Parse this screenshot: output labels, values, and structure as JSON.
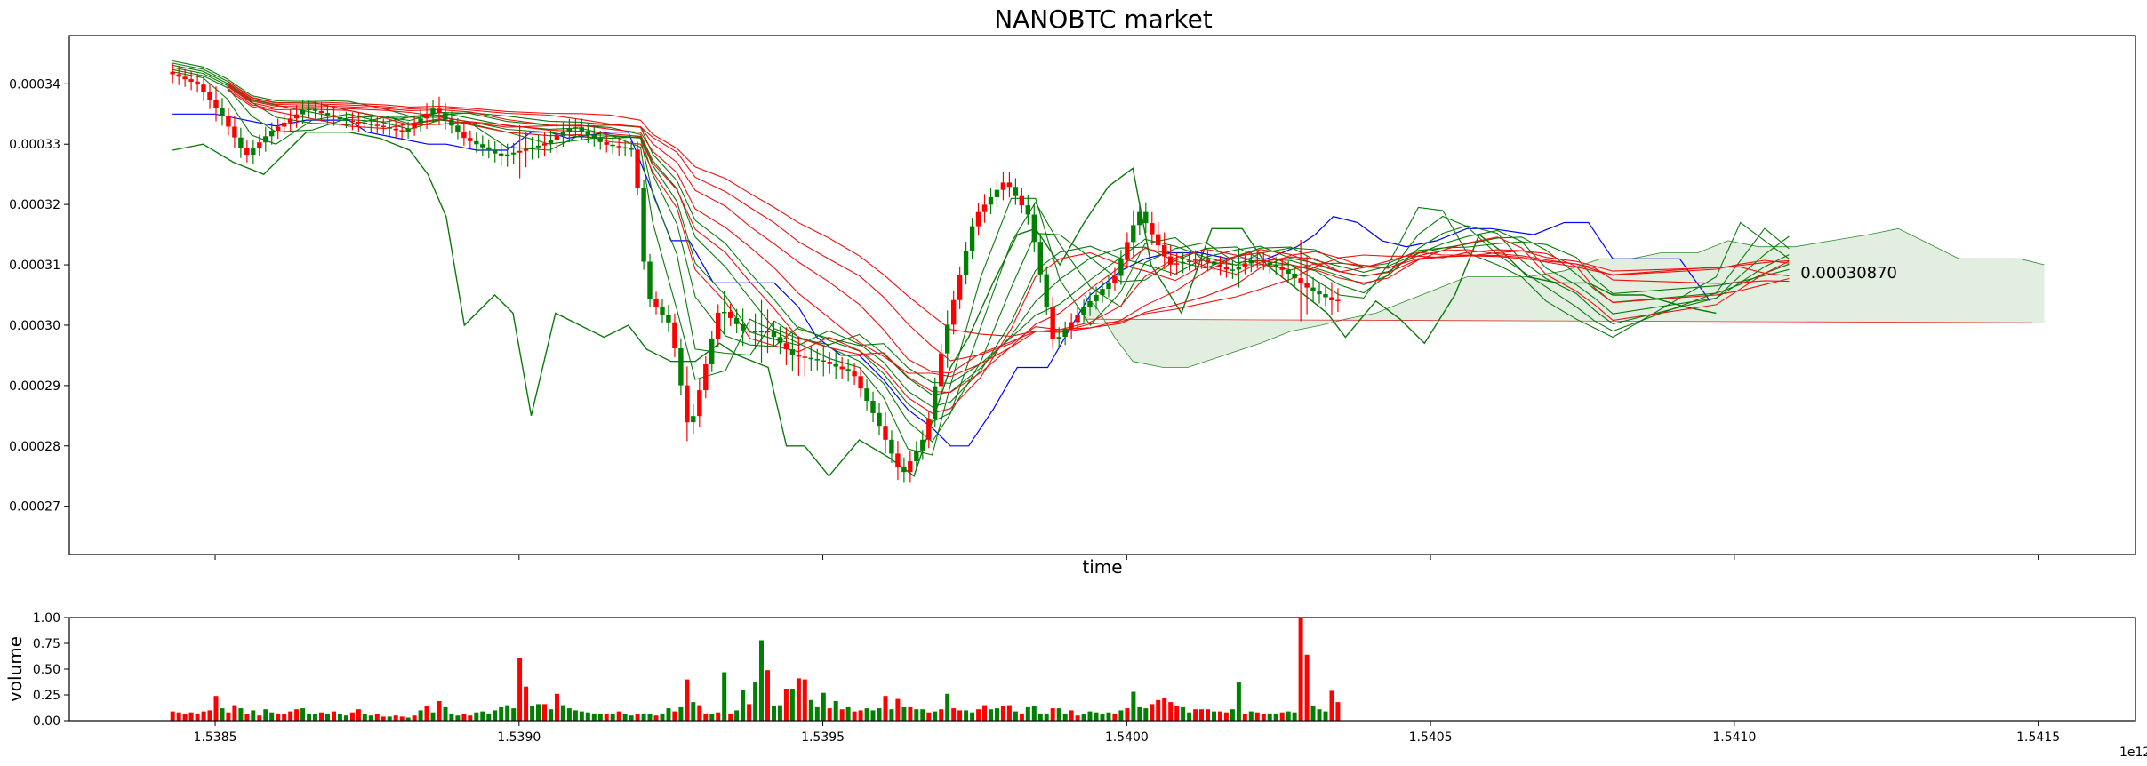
{
  "chart_data": [
    {
      "type": "candlestick",
      "title": "NANOBTC market",
      "xlabel": "time",
      "ylabel": "",
      "xlim": [
        1.53826,
        1.54166
      ],
      "ylim": [
        0.000262,
        0.000348
      ],
      "y_ticks": [
        0.00027,
        0.00028,
        0.00029,
        0.0003,
        0.00031,
        0.00032,
        0.00033,
        0.00034
      ],
      "y_tick_labels": [
        "0.00027",
        "0.00028",
        "0.00029",
        "0.00030",
        "0.00031",
        "0.00032",
        "0.00033",
        "0.00034"
      ],
      "x_ticks": [
        1.5385,
        1.539,
        1.5395,
        1.54,
        1.5405,
        1.541,
        1.5415
      ],
      "last_price_label": "0.00030870",
      "last_price": [
        1.5411,
        0.0003087
      ],
      "up_color": "#008000",
      "down_color": "#ff0000",
      "price_path": [
        [
          1.53843,
          0.000342
        ],
        [
          1.53848,
          0.00034
        ],
        [
          1.53852,
          0.000335
        ],
        [
          1.53856,
          0.000328
        ],
        [
          1.5386,
          0.000332
        ],
        [
          1.53866,
          0.000336
        ],
        [
          1.53872,
          0.000334
        ],
        [
          1.53878,
          0.000333
        ],
        [
          1.53882,
          0.000332
        ],
        [
          1.53887,
          0.000336
        ],
        [
          1.53892,
          0.000331
        ],
        [
          1.53898,
          0.000328
        ],
        [
          1.53905,
          0.00033
        ],
        [
          1.5391,
          0.000333
        ],
        [
          1.53915,
          0.00033
        ],
        [
          1.5392,
          0.000329
        ],
        [
          1.53922,
          0.000305
        ],
        [
          1.53926,
          0.0003
        ],
        [
          1.53929,
          0.000282
        ],
        [
          1.53934,
          0.000303
        ],
        [
          1.53938,
          0.000299
        ],
        [
          1.53942,
          0.000299
        ],
        [
          1.53946,
          0.000295
        ],
        [
          1.53951,
          0.000294
        ],
        [
          1.53956,
          0.000292
        ],
        [
          1.5396,
          0.000284
        ],
        [
          1.53964,
          0.000275
        ],
        [
          1.53968,
          0.000282
        ],
        [
          1.53971,
          0.000298
        ],
        [
          1.53976,
          0.000318
        ],
        [
          1.53981,
          0.000324
        ],
        [
          1.53985,
          0.000318
        ],
        [
          1.53989,
          0.000297
        ],
        [
          1.53994,
          0.000303
        ],
        [
          1.53999,
          0.000308
        ],
        [
          1.54003,
          0.000319
        ],
        [
          1.54008,
          0.00031
        ],
        [
          1.54013,
          0.000311
        ],
        [
          1.54018,
          0.000309
        ],
        [
          1.54022,
          0.000311
        ],
        [
          1.54027,
          0.000309
        ],
        [
          1.54031,
          0.000306
        ],
        [
          1.54035,
          0.000304
        ],
        [
          1.54039,
          0.000305
        ],
        [
          1.54043,
          0.000315
        ],
        [
          1.54048,
          0.000324
        ],
        [
          1.54052,
          0.000314
        ],
        [
          1.54056,
          0.00031
        ],
        [
          1.54061,
          0.00031
        ],
        [
          1.54065,
          0.000306
        ],
        [
          1.54069,
          0.000302
        ],
        [
          1.54074,
          0.0003
        ],
        [
          1.54077,
          0.000299
        ],
        [
          1.5408,
          0.000297
        ],
        [
          1.54097,
          0.000319
        ],
        [
          1.54101,
          0.000315
        ],
        [
          1.54105,
          0.000313
        ],
        [
          1.54109,
          0.000309
        ]
      ],
      "cloud_upper_path": [
        [
          1.53993,
          0.000305
        ],
        [
          1.53995,
          0.000303
        ],
        [
          1.53998,
          0.000298
        ],
        [
          1.54001,
          0.000294
        ],
        [
          1.54006,
          0.000293
        ],
        [
          1.5401,
          0.000293
        ],
        [
          1.54016,
          0.000295
        ],
        [
          1.54022,
          0.000297
        ],
        [
          1.54027,
          0.000299
        ],
        [
          1.54032,
          0.0003
        ],
        [
          1.54036,
          0.000301
        ],
        [
          1.54041,
          0.000302
        ],
        [
          1.54046,
          0.000304
        ],
        [
          1.54051,
          0.000306
        ],
        [
          1.54056,
          0.000308
        ],
        [
          1.54061,
          0.000308
        ],
        [
          1.54066,
          0.000308
        ],
        [
          1.54072,
          0.000309
        ],
        [
          1.54078,
          0.000311
        ],
        [
          1.54083,
          0.000311
        ],
        [
          1.54088,
          0.000312
        ],
        [
          1.54094,
          0.000312
        ],
        [
          1.54099,
          0.000314
        ],
        [
          1.54104,
          0.000313
        ],
        [
          1.5411,
          0.000313
        ],
        [
          1.54116,
          0.000314
        ],
        [
          1.54122,
          0.000315
        ],
        [
          1.54127,
          0.000316
        ],
        [
          1.54131,
          0.000314
        ],
        [
          1.54137,
          0.000311
        ],
        [
          1.54141,
          0.000311
        ],
        [
          1.54147,
          0.000311
        ],
        [
          1.54151,
          0.00031
        ]
      ],
      "cloud_lower_path": [
        [
          1.53993,
          0.000301
        ],
        [
          1.54151,
          0.0003004
        ]
      ],
      "baseline_path": [
        [
          1.53843,
          0.000329
        ],
        [
          1.53848,
          0.00033
        ],
        [
          1.53853,
          0.000327
        ],
        [
          1.53858,
          0.000325
        ],
        [
          1.53865,
          0.000332
        ],
        [
          1.53872,
          0.000332
        ],
        [
          1.53877,
          0.000331
        ],
        [
          1.53882,
          0.000329
        ],
        [
          1.53885,
          0.000325
        ],
        [
          1.53888,
          0.000318
        ],
        [
          1.53891,
          0.0003
        ],
        [
          1.53896,
          0.000305
        ],
        [
          1.53899,
          0.000302
        ],
        [
          1.53902,
          0.000285
        ],
        [
          1.53906,
          0.000302
        ],
        [
          1.5391,
          0.0003
        ],
        [
          1.53914,
          0.000298
        ],
        [
          1.53918,
          0.0003
        ],
        [
          1.53921,
          0.000296
        ],
        [
          1.53925,
          0.000294
        ],
        [
          1.53929,
          0.000294
        ],
        [
          1.53933,
          0.000297
        ],
        [
          1.53936,
          0.000295
        ],
        [
          1.53941,
          0.000293
        ],
        [
          1.53944,
          0.00028
        ],
        [
          1.53947,
          0.00028
        ],
        [
          1.53951,
          0.000275
        ],
        [
          1.53956,
          0.000281
        ],
        [
          1.53961,
          0.000278
        ],
        [
          1.53965,
          0.000275
        ],
        [
          1.53971,
          0.000293
        ],
        [
          1.53974,
          0.000298
        ],
        [
          1.53978,
          0.000307
        ],
        [
          1.53982,
          0.000315
        ],
        [
          1.53985,
          0.000316
        ],
        [
          1.53989,
          0.00031
        ],
        [
          1.53993,
          0.000317
        ],
        [
          1.53997,
          0.000323
        ],
        [
          1.54001,
          0.000326
        ],
        [
          1.54004,
          0.00031
        ],
        [
          1.54009,
          0.000302
        ],
        [
          1.54014,
          0.000316
        ],
        [
          1.54019,
          0.000316
        ],
        [
          1.54023,
          0.00031
        ],
        [
          1.54028,
          0.000306
        ],
        [
          1.54033,
          0.000302
        ],
        [
          1.54036,
          0.000298
        ],
        [
          1.54041,
          0.000304
        ],
        [
          1.54045,
          0.000301
        ],
        [
          1.54049,
          0.000297
        ],
        [
          1.54054,
          0.000305
        ],
        [
          1.54058,
          0.000315
        ],
        [
          1.54062,
          0.000312
        ],
        [
          1.54066,
          0.000308
        ],
        [
          1.54071,
          0.000307
        ],
        [
          1.54076,
          0.000307
        ],
        [
          1.5408,
          0.000305
        ],
        [
          1.54085,
          0.000305
        ],
        [
          1.54092,
          0.000303
        ],
        [
          1.54097,
          0.000302
        ]
      ],
      "reference_line_color": "#0000ff",
      "reference_path": [
        [
          1.53843,
          0.000335
        ],
        [
          1.5385,
          0.000335
        ],
        [
          1.5386,
          0.000333
        ],
        [
          1.53865,
          0.000334
        ],
        [
          1.53872,
          0.000334
        ],
        [
          1.53875,
          0.000332
        ],
        [
          1.5388,
          0.000331
        ],
        [
          1.53885,
          0.00033
        ],
        [
          1.53888,
          0.00033
        ],
        [
          1.53893,
          0.000329
        ],
        [
          1.53898,
          0.000329
        ],
        [
          1.53902,
          0.000332
        ],
        [
          1.53905,
          0.000332
        ],
        [
          1.53908,
          0.000331
        ],
        [
          1.53915,
          0.000332
        ],
        [
          1.53918,
          0.000332
        ],
        [
          1.5392,
          0.000327
        ],
        [
          1.53922,
          0.000322
        ],
        [
          1.53925,
          0.000314
        ],
        [
          1.53928,
          0.000314
        ],
        [
          1.53932,
          0.000307
        ],
        [
          1.53936,
          0.000307
        ],
        [
          1.53942,
          0.000307
        ],
        [
          1.53946,
          0.000303
        ],
        [
          1.53949,
          0.000298
        ],
        [
          1.53953,
          0.000295
        ],
        [
          1.53956,
          0.000295
        ],
        [
          1.5396,
          0.000291
        ],
        [
          1.53964,
          0.000286
        ],
        [
          1.53968,
          0.000283
        ],
        [
          1.53971,
          0.00028
        ],
        [
          1.53974,
          0.00028
        ],
        [
          1.53978,
          0.000286
        ],
        [
          1.53982,
          0.000293
        ],
        [
          1.53987,
          0.000293
        ],
        [
          1.53991,
          0.0003
        ],
        [
          1.53994,
          0.000305
        ],
        [
          1.53999,
          0.000309
        ],
        [
          1.54003,
          0.000311
        ],
        [
          1.54007,
          0.000312
        ],
        [
          1.54012,
          0.000312
        ],
        [
          1.54017,
          0.000311
        ],
        [
          1.54023,
          0.000311
        ],
        [
          1.54028,
          0.000313
        ],
        [
          1.54031,
          0.000315
        ],
        [
          1.54034,
          0.000318
        ],
        [
          1.54038,
          0.000317
        ],
        [
          1.54042,
          0.000314
        ],
        [
          1.54046,
          0.000313
        ],
        [
          1.54051,
          0.000314
        ],
        [
          1.54056,
          0.000316
        ],
        [
          1.5406,
          0.000316
        ],
        [
          1.54067,
          0.000315
        ],
        [
          1.54072,
          0.000317
        ],
        [
          1.54076,
          0.000317
        ],
        [
          1.5408,
          0.000311
        ],
        [
          1.54087,
          0.000311
        ],
        [
          1.54091,
          0.000311
        ],
        [
          1.54096,
          0.000304
        ]
      ],
      "ribbon_offsets_green": [
        0.0,
        1.2e-06,
        2.4e-06,
        3.6e-06,
        4.8e-06,
        6e-06
      ],
      "ribbon_offsets_red": [
        0.0,
        2e-06,
        4e-06,
        6e-06,
        8e-06,
        1e-05
      ]
    },
    {
      "type": "bar",
      "title": "",
      "xlabel": "",
      "ylabel": "volume",
      "xlim": [
        1.53826,
        1.54166
      ],
      "ylim": [
        0.0,
        1.0
      ],
      "y_ticks": [
        0.0,
        0.25,
        0.5,
        0.75,
        1.0
      ],
      "y_tick_labels": [
        "0.00",
        "0.25",
        "0.50",
        "0.75",
        "1.00"
      ],
      "x_ticks": [
        1.5385,
        1.539,
        1.5395,
        1.54,
        1.5405,
        1.541,
        1.5415
      ],
      "x_tick_labels": [
        "1.5385",
        "1.5390",
        "1.5395",
        "1.5400",
        "1.5405",
        "1.5410",
        "1.5415"
      ],
      "offset_text": "1e12",
      "x_start": 1.53843,
      "x_step": 1.02e-05,
      "values": [
        0.09,
        0.08,
        0.06,
        0.08,
        0.07,
        0.09,
        0.1,
        0.24,
        0.12,
        0.08,
        0.15,
        0.12,
        0.06,
        0.1,
        0.05,
        0.11,
        0.08,
        0.07,
        0.06,
        0.09,
        0.11,
        0.12,
        0.07,
        0.06,
        0.08,
        0.07,
        0.09,
        0.06,
        0.05,
        0.08,
        0.11,
        0.06,
        0.05,
        0.06,
        0.04,
        0.04,
        0.05,
        0.04,
        0.03,
        0.05,
        0.1,
        0.14,
        0.08,
        0.19,
        0.13,
        0.07,
        0.05,
        0.06,
        0.05,
        0.08,
        0.09,
        0.07,
        0.1,
        0.13,
        0.15,
        0.12,
        0.61,
        0.33,
        0.14,
        0.16,
        0.16,
        0.11,
        0.26,
        0.15,
        0.12,
        0.1,
        0.09,
        0.08,
        0.07,
        0.06,
        0.06,
        0.07,
        0.09,
        0.06,
        0.05,
        0.06,
        0.07,
        0.06,
        0.05,
        0.07,
        0.12,
        0.09,
        0.13,
        0.4,
        0.18,
        0.15,
        0.07,
        0.06,
        0.08,
        0.47,
        0.07,
        0.1,
        0.3,
        0.16,
        0.37,
        0.78,
        0.49,
        0.14,
        0.15,
        0.31,
        0.31,
        0.41,
        0.4,
        0.2,
        0.13,
        0.27,
        0.12,
        0.19,
        0.11,
        0.13,
        0.09,
        0.1,
        0.12,
        0.1,
        0.12,
        0.24,
        0.11,
        0.21,
        0.13,
        0.13,
        0.11,
        0.11,
        0.08,
        0.09,
        0.11,
        0.26,
        0.12,
        0.1,
        0.1,
        0.08,
        0.11,
        0.15,
        0.11,
        0.12,
        0.14,
        0.15,
        0.09,
        0.07,
        0.13,
        0.14,
        0.07,
        0.07,
        0.12,
        0.12,
        0.07,
        0.1,
        0.05,
        0.06,
        0.09,
        0.08,
        0.06,
        0.08,
        0.07,
        0.1,
        0.12,
        0.28,
        0.13,
        0.12,
        0.16,
        0.2,
        0.22,
        0.18,
        0.14,
        0.13,
        0.08,
        0.11,
        0.11,
        0.11,
        0.09,
        0.09,
        0.08,
        0.11,
        0.37,
        0.06,
        0.09,
        0.08,
        0.06,
        0.07,
        0.07,
        0.08,
        0.09,
        0.08,
        1.0,
        0.64,
        0.14,
        0.11,
        0.09,
        0.29,
        0.18
      ],
      "colors": [
        "r",
        "r",
        "r",
        "r",
        "r",
        "r",
        "r",
        "r",
        "g",
        "r",
        "r",
        "g",
        "r",
        "g",
        "r",
        "g",
        "g",
        "r",
        "r",
        "r",
        "r",
        "g",
        "g",
        "g",
        "r",
        "g",
        "r",
        "g",
        "g",
        "r",
        "r",
        "g",
        "g",
        "r",
        "r",
        "g",
        "r",
        "r",
        "g",
        "r",
        "g",
        "r",
        "g",
        "r",
        "g",
        "g",
        "g",
        "r",
        "r",
        "g",
        "g",
        "g",
        "g",
        "g",
        "g",
        "g",
        "r",
        "r",
        "g",
        "g",
        "r",
        "g",
        "r",
        "g",
        "g",
        "g",
        "g",
        "g",
        "g",
        "g",
        "r",
        "g",
        "r",
        "g",
        "g",
        "r",
        "g",
        "g",
        "r",
        "g",
        "g",
        "r",
        "g",
        "r",
        "g",
        "r",
        "r",
        "g",
        "r",
        "g",
        "r",
        "g",
        "g",
        "r",
        "g",
        "g",
        "r",
        "g",
        "g",
        "r",
        "g",
        "r",
        "r",
        "g",
        "g",
        "g",
        "r",
        "g",
        "r",
        "g",
        "r",
        "r",
        "g",
        "g",
        "g",
        "r",
        "g",
        "r",
        "g",
        "r",
        "g",
        "g",
        "r",
        "g",
        "r",
        "g",
        "r",
        "r",
        "g",
        "g",
        "r",
        "r",
        "g",
        "g",
        "r",
        "r",
        "g",
        "r",
        "g",
        "g",
        "g",
        "g",
        "r",
        "g",
        "g",
        "r",
        "r",
        "g",
        "g",
        "g",
        "g",
        "g",
        "r",
        "g",
        "r",
        "g",
        "g",
        "g",
        "r",
        "r",
        "r",
        "r",
        "r",
        "g",
        "g",
        "r",
        "r",
        "r",
        "g",
        "r",
        "r",
        "g",
        "g",
        "r",
        "g",
        "r",
        "r",
        "g",
        "g",
        "r",
        "g",
        "g",
        "r",
        "r",
        "g",
        "g",
        "g",
        "r",
        "r"
      ]
    }
  ]
}
